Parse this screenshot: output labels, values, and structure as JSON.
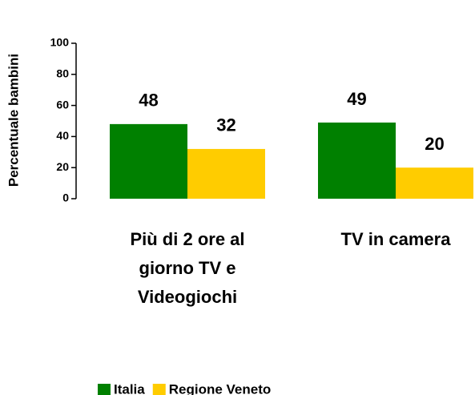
{
  "chart_data": {
    "type": "bar",
    "ylabel": "Percentuale bambini",
    "categories": [
      "Più di 2 ore al giorno TV e Videogiochi",
      "TV in camera"
    ],
    "series": [
      {
        "name": "Italia",
        "color": "#008000",
        "values": [
          48,
          49
        ]
      },
      {
        "name": "Regione Veneto",
        "color": "#ffcc00",
        "values": [
          32,
          20
        ]
      }
    ],
    "ylim": [
      0,
      100
    ],
    "yticks": [
      0,
      20,
      40,
      60,
      80,
      100
    ]
  }
}
